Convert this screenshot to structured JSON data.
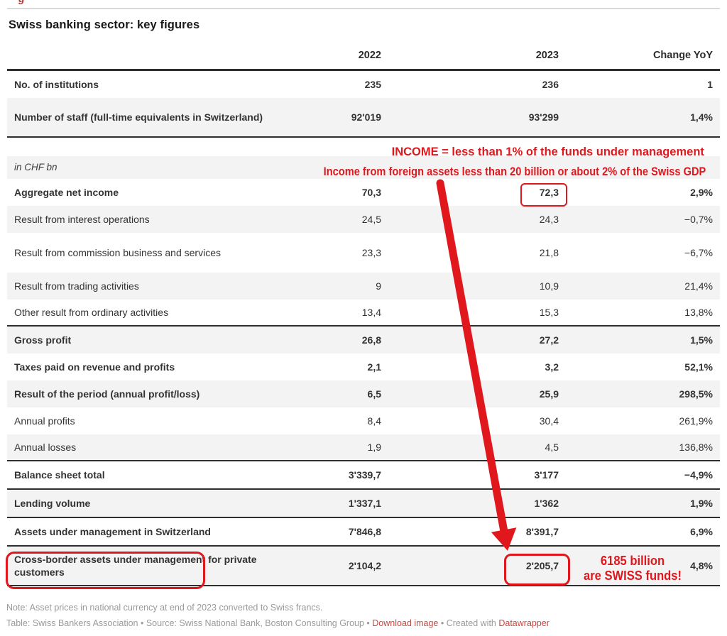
{
  "header": {
    "title": "Swiss banking sector: key figures"
  },
  "chart_data": {
    "type": "table",
    "title": "Swiss banking sector: key figures",
    "columns": [
      "2022",
      "2023",
      "Change YoY"
    ],
    "unit_label": "in CHF bn",
    "rows": [
      {
        "label": "No. of institutions",
        "y2022": "235",
        "y2023": "236",
        "yoy": "1",
        "emphasis": true,
        "shade": "white"
      },
      {
        "label": "Number of staff (full-time equivalents in Switzerland)",
        "y2022": "92'019",
        "y2023": "93'299",
        "yoy": "1,4%",
        "emphasis": true,
        "shade": "gray",
        "twoline": true,
        "section_end": true
      },
      {
        "type": "spacer"
      },
      {
        "type": "unit",
        "label": "in CHF bn",
        "shade": "gray"
      },
      {
        "label": "Aggregate net income",
        "y2022": "70,3",
        "y2023": "72,3",
        "yoy": "2,9%",
        "emphasis": true,
        "shade": "white"
      },
      {
        "label": "Result from interest operations",
        "y2022": "24,5",
        "y2023": "24,3",
        "yoy": "−0,7%",
        "emphasis": false,
        "shade": "gray"
      },
      {
        "label": "Result from commission business and services",
        "y2022": "23,3",
        "y2023": "21,8",
        "yoy": "−6,7%",
        "emphasis": false,
        "shade": "white",
        "twoline": true
      },
      {
        "label": "Result from trading activities",
        "y2022": "9",
        "y2023": "10,9",
        "yoy": "21,4%",
        "emphasis": false,
        "shade": "gray"
      },
      {
        "label": "Other result from ordinary activities",
        "y2022": "13,4",
        "y2023": "15,3",
        "yoy": "13,8%",
        "emphasis": false,
        "shade": "white",
        "section_end": true
      },
      {
        "label": "Gross profit",
        "y2022": "26,8",
        "y2023": "27,2",
        "yoy": "1,5%",
        "emphasis": true,
        "shade": "gray"
      },
      {
        "label": "Taxes paid on revenue and profits",
        "y2022": "2,1",
        "y2023": "3,2",
        "yoy": "52,1%",
        "emphasis": true,
        "shade": "white"
      },
      {
        "label": "Result of the period (annual profit/loss)",
        "y2022": "6,5",
        "y2023": "25,9",
        "yoy": "298,5%",
        "emphasis": true,
        "shade": "gray"
      },
      {
        "label": "Annual profits",
        "y2022": "8,4",
        "y2023": "30,4",
        "yoy": "261,9%",
        "emphasis": false,
        "shade": "white"
      },
      {
        "label": "Annual losses",
        "y2022": "1,9",
        "y2023": "4,5",
        "yoy": "136,8%",
        "emphasis": false,
        "shade": "gray",
        "section_end": true
      },
      {
        "label": "Balance sheet total",
        "y2022": "3'339,7",
        "y2023": "3'177",
        "yoy": "−4,9%",
        "emphasis": true,
        "shade": "white",
        "tall": true,
        "section_end": true
      },
      {
        "label": "Lending volume",
        "y2022": "1'337,1",
        "y2023": "1'362",
        "yoy": "1,9%",
        "emphasis": true,
        "shade": "gray",
        "tall": true,
        "section_end": true
      },
      {
        "label": "Assets under management in Switzerland",
        "y2022": "7'846,8",
        "y2023": "8'391,7",
        "yoy": "6,9%",
        "emphasis": true,
        "shade": "white",
        "tall": true,
        "section_end": true
      },
      {
        "label": "Cross-border assets under management for private customers",
        "y2022": "2'104,2",
        "y2023": "2'205,7",
        "yoy": "4,8%",
        "emphasis": true,
        "shade": "gray",
        "twoline": true,
        "section_end": true
      }
    ],
    "notes": "Note: Asset prices in national currency at end of 2023 converted to Swiss francs."
  },
  "annotations": {
    "color": "#e0181e",
    "line1": "INCOME = less than 1% of the funds under management",
    "line2": "Income from foreign assets less than 20 billion or about 2% of the Swiss GDP",
    "funds_line1": "6185 billion",
    "funds_line2": "are SWISS funds!"
  },
  "footer": {
    "note": "Note: Asset prices in national currency at end of 2023 converted to Swiss francs.",
    "credits_prefix": "Table: Swiss Bankers Association • Source: Swiss National Bank, Boston Consulting Group • ",
    "download_label": "Download image",
    "separator": " • ",
    "created_with": "Created with ",
    "tool": "Datawrapper"
  }
}
